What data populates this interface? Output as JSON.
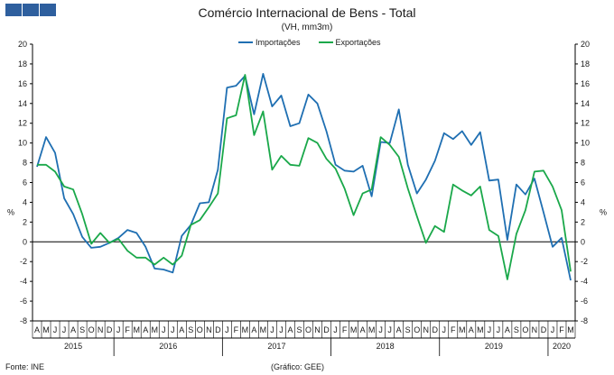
{
  "header": {
    "title": "Comércio Internacional de Bens - Total",
    "subtitle": "(VH, mm3m)"
  },
  "footer": {
    "source": "Fonte: INE",
    "credit": "(Gráfico: GEE)"
  },
  "colors": {
    "importacoes": "#1f6fb2",
    "exportacoes": "#1aa84a",
    "logo": "#2e5f9e",
    "grid": "#d9d9d9",
    "axis": "#000000"
  },
  "chart_data": {
    "type": "line",
    "title": "Comércio Internacional de Bens - Total",
    "subtitle": "(VH, mm3m)",
    "ylabel": "%",
    "ylim": [
      -8,
      20
    ],
    "yticks": [
      -8,
      -6,
      -4,
      -2,
      0,
      2,
      4,
      6,
      8,
      10,
      12,
      14,
      16,
      18,
      20
    ],
    "legend_position": "top-center",
    "grid": false,
    "month_labels": [
      "A",
      "M",
      "J",
      "J",
      "A",
      "S",
      "O",
      "N",
      "D",
      "J",
      "F",
      "M",
      "A",
      "M",
      "J",
      "J",
      "A",
      "S",
      "O",
      "N",
      "D",
      "J",
      "F",
      "M",
      "A",
      "M",
      "J",
      "J",
      "A",
      "S",
      "O",
      "N",
      "D",
      "J",
      "F",
      "M",
      "A",
      "M",
      "J",
      "J",
      "A",
      "S",
      "O",
      "N",
      "D",
      "J",
      "F",
      "M",
      "A",
      "M",
      "J",
      "J",
      "A",
      "S",
      "O",
      "N",
      "D",
      "J",
      "F",
      "M"
    ],
    "years": [
      {
        "label": "2015",
        "start": 0,
        "end": 8
      },
      {
        "label": "2016",
        "start": 9,
        "end": 20
      },
      {
        "label": "2017",
        "start": 21,
        "end": 32
      },
      {
        "label": "2018",
        "start": 33,
        "end": 44
      },
      {
        "label": "2019",
        "start": 45,
        "end": 56
      },
      {
        "label": "2020",
        "start": 57,
        "end": 59
      }
    ],
    "x": [
      "2015-04",
      "2015-05",
      "2015-06",
      "2015-07",
      "2015-08",
      "2015-09",
      "2015-10",
      "2015-11",
      "2015-12",
      "2016-01",
      "2016-02",
      "2016-03",
      "2016-04",
      "2016-05",
      "2016-06",
      "2016-07",
      "2016-08",
      "2016-09",
      "2016-10",
      "2016-11",
      "2016-12",
      "2017-01",
      "2017-02",
      "2017-03",
      "2017-04",
      "2017-05",
      "2017-06",
      "2017-07",
      "2017-08",
      "2017-09",
      "2017-10",
      "2017-11",
      "2017-12",
      "2018-01",
      "2018-02",
      "2018-03",
      "2018-04",
      "2018-05",
      "2018-06",
      "2018-07",
      "2018-08",
      "2018-09",
      "2018-10",
      "2018-11",
      "2018-12",
      "2019-01",
      "2019-02",
      "2019-03",
      "2019-04",
      "2019-05",
      "2019-06",
      "2019-07",
      "2019-08",
      "2019-09",
      "2019-10",
      "2019-11",
      "2019-12",
      "2020-01",
      "2020-02",
      "2020-03"
    ],
    "series": [
      {
        "name": "Importações",
        "color": "#1f6fb2",
        "values": [
          7.6,
          10.6,
          9.0,
          4.4,
          2.8,
          0.5,
          -0.6,
          -0.5,
          -0.1,
          0.4,
          1.2,
          0.9,
          -0.5,
          -2.7,
          -2.8,
          -3.1,
          0.6,
          1.7,
          3.9,
          4.0,
          7.3,
          15.6,
          15.8,
          16.8,
          12.9,
          17.0,
          13.7,
          14.8,
          11.7,
          12.0,
          14.9,
          14.0,
          11.2,
          7.8,
          7.2,
          7.1,
          7.7,
          4.6,
          10.1,
          10.0,
          13.4,
          7.8,
          4.9,
          6.3,
          8.2,
          11.0,
          10.4,
          11.2,
          9.8,
          11.1,
          6.2,
          6.3,
          0.2,
          5.8,
          4.8,
          6.4,
          3.0,
          -0.5,
          0.4,
          -3.9
        ]
      },
      {
        "name": "Exportações",
        "color": "#1aa84a",
        "values": [
          7.8,
          7.8,
          7.1,
          5.6,
          5.3,
          2.8,
          -0.2,
          0.9,
          -0.1,
          0.3,
          -0.9,
          -1.6,
          -1.6,
          -2.3,
          -1.6,
          -2.3,
          -1.4,
          1.7,
          2.2,
          3.5,
          4.9,
          12.5,
          12.8,
          16.9,
          10.8,
          13.2,
          7.3,
          8.7,
          7.8,
          7.7,
          10.5,
          10.0,
          8.4,
          7.4,
          5.4,
          2.7,
          4.9,
          5.3,
          10.6,
          9.8,
          8.6,
          5.4,
          2.6,
          -0.1,
          1.6,
          1.0,
          5.8,
          5.2,
          4.7,
          5.6,
          1.2,
          0.6,
          -3.8,
          0.8,
          3.2,
          7.1,
          7.2,
          5.6,
          3.2,
          -3.0
        ]
      }
    ]
  }
}
